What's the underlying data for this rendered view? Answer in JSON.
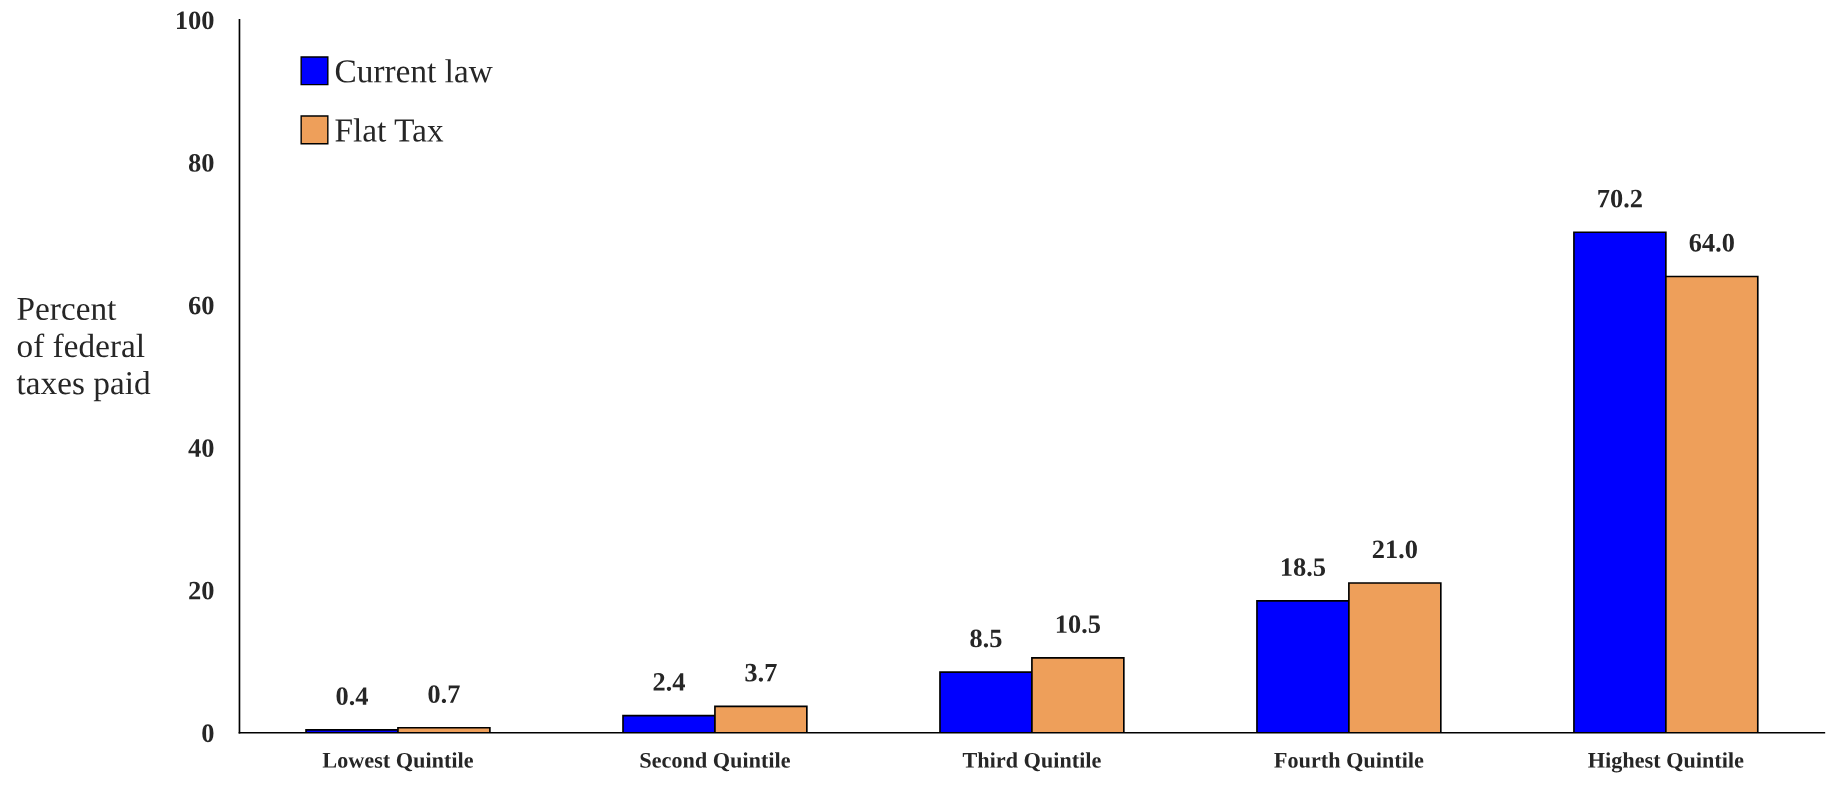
{
  "chart_data": {
    "type": "bar",
    "ylabel": "Percent\nof federal\ntaxes paid",
    "categories": [
      "Lowest Quintile",
      "Second Quintile",
      "Third Quintile",
      "Fourth Quintile",
      "Highest Quintile"
    ],
    "series": [
      {
        "name": "Current law",
        "color": "#0000ff",
        "values": [
          0.4,
          2.4,
          8.5,
          18.5,
          70.2
        ],
        "value_labels": [
          "0.4",
          "2.4",
          "8.5",
          "18.5",
          "70.2"
        ]
      },
      {
        "name": "Flat Tax",
        "color": "#ee9f5a",
        "values": [
          0.7,
          3.7,
          10.5,
          21.0,
          64.0
        ],
        "value_labels": [
          "0.7",
          "3.7",
          "10.5",
          "21.0",
          "64.0"
        ]
      }
    ],
    "ylim": [
      0,
      100
    ],
    "yticks": [
      0,
      20,
      40,
      60,
      80,
      100
    ],
    "grid": false,
    "legend": "top left"
  }
}
